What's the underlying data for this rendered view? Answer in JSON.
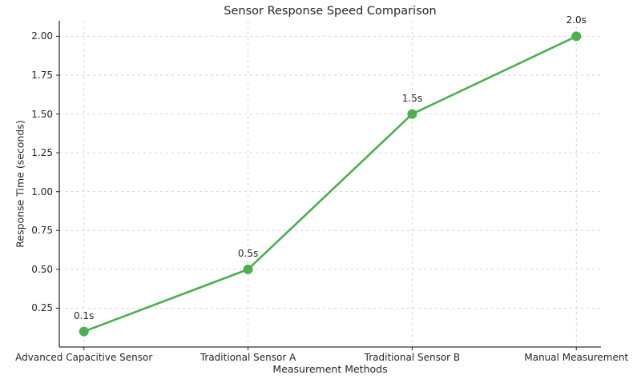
{
  "chart_data": {
    "type": "line",
    "title": "Sensor Response Speed Comparison",
    "xlabel": "Measurement Methods",
    "ylabel": "Response Time (seconds)",
    "categories": [
      "Advanced Capacitive Sensor",
      "Traditional Sensor A",
      "Traditional Sensor B",
      "Manual Measurement"
    ],
    "values": [
      0.1,
      0.5,
      1.5,
      2.0
    ],
    "point_labels": [
      "0.1s",
      "0.5s",
      "1.5s",
      "2.0s"
    ],
    "ytick_labels": [
      "0.25",
      "0.50",
      "0.75",
      "1.00",
      "1.25",
      "1.50",
      "1.75",
      "2.00"
    ],
    "ytick_values": [
      0.25,
      0.5,
      0.75,
      1.0,
      1.25,
      1.5,
      1.75,
      2.0
    ],
    "ylim": [
      0,
      2.1
    ],
    "grid": true,
    "grid_style": "dashed",
    "legend": false,
    "colors": {
      "line": "#4caf50",
      "marker": "#4caf50",
      "grid": "#cfcfcf",
      "axis": "#333333",
      "text": "#262626",
      "background": "#ffffff"
    }
  }
}
